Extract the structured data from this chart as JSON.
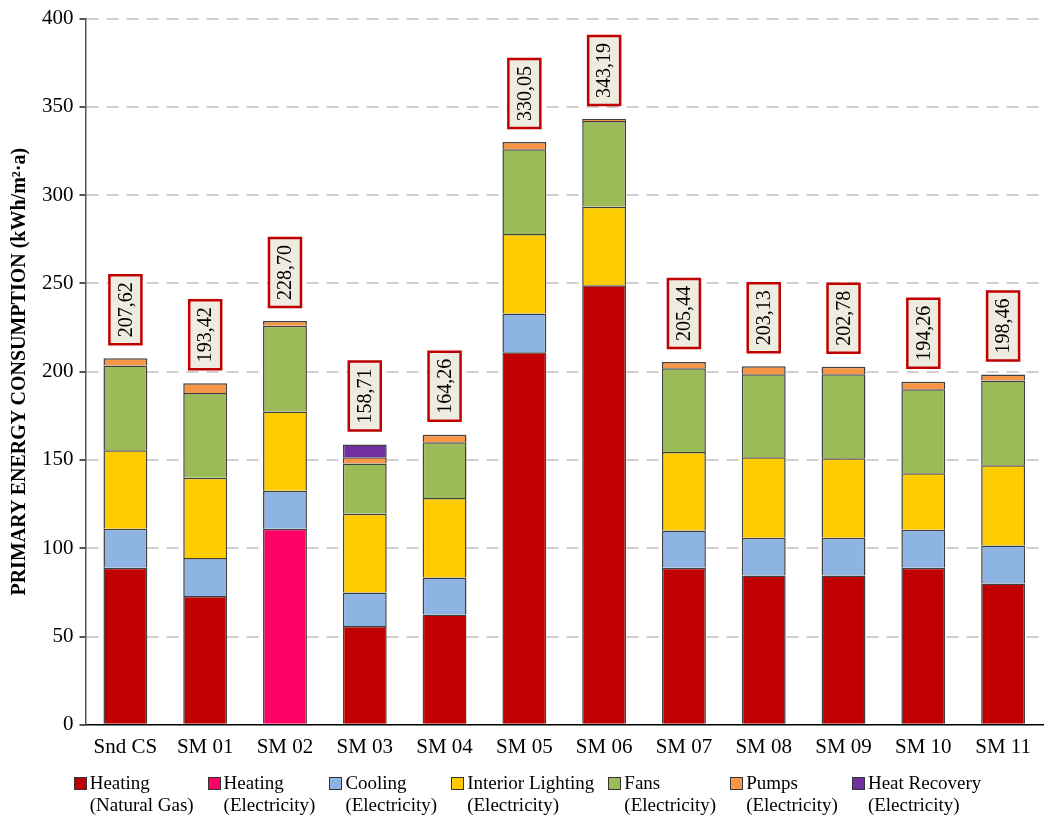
{
  "chart_data": {
    "type": "bar",
    "stacked": true,
    "ylabel": "PRIMARY ENERGY CONSUMPTION (kWh/m²·a)",
    "categories": [
      "Snd CS",
      "SM 01",
      "SM 02",
      "SM 03",
      "SM 04",
      "SM 05",
      "SM 06",
      "SM 07",
      "SM 08",
      "SM 09",
      "SM 10",
      "SM 11"
    ],
    "series": [
      {
        "name": "Heating (Natural Gas)",
        "color": "#c00000",
        "values": [
          89,
          73,
          null,
          56,
          62.5,
          211,
          249,
          89,
          84.5,
          84.5,
          89,
          80
        ]
      },
      {
        "name": "Heating (Electricity)",
        "color": "#ff0066",
        "values": [
          null,
          null,
          111,
          null,
          null,
          null,
          null,
          null,
          null,
          null,
          null,
          null
        ]
      },
      {
        "name": "Cooling (Electricity)",
        "color": "#8db4e2",
        "values": [
          22,
          21.5,
          21.5,
          19,
          21,
          22,
          null,
          21,
          21.5,
          21.5,
          21.5,
          21.5
        ]
      },
      {
        "name": "Interior Lighting (Electricity)",
        "color": "#ffcc00",
        "values": [
          44.5,
          45.5,
          45,
          44.5,
          45,
          45,
          44.5,
          44.5,
          45.5,
          45,
          32,
          45.5
        ]
      },
      {
        "name": "Fans (Electricity)",
        "color": "#9bbb59",
        "values": [
          48,
          48,
          48.5,
          28.5,
          31.5,
          48,
          48.5,
          47.5,
          47,
          47.5,
          47.5,
          48
        ]
      },
      {
        "name": "Pumps (Electricity)",
        "color": "#f79646",
        "values": [
          4.12,
          5.42,
          2.7,
          3.5,
          4.26,
          4.05,
          1.19,
          3.44,
          4.63,
          4.28,
          4.26,
          3.46
        ]
      },
      {
        "name": "Heat Recovery (Electricity)",
        "color": "#7030a0",
        "values": [
          null,
          null,
          null,
          7.21,
          null,
          null,
          null,
          null,
          null,
          null,
          null,
          null
        ]
      }
    ],
    "totals": [
      "207,62",
      "193,42",
      "228,70",
      "158,71",
      "164,26",
      "330,05",
      "343,19",
      "205,44",
      "203,13",
      "202,78",
      "194,26",
      "198,46"
    ],
    "ylim": [
      0,
      400
    ],
    "yticks": [
      0,
      50,
      100,
      150,
      200,
      250,
      300,
      350,
      400
    ],
    "grid": "y",
    "legend": "bottom"
  }
}
